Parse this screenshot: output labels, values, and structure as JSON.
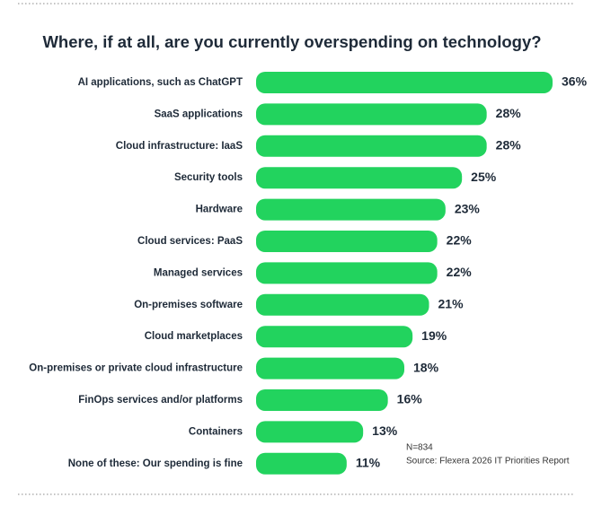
{
  "chart_data": {
    "type": "bar",
    "orientation": "horizontal",
    "title": "Where, if at all, are you currently overspending on technology?",
    "categories": [
      "AI applications, such as ChatGPT",
      "SaaS applications",
      "Cloud infrastructure: IaaS",
      "Security tools",
      "Hardware",
      "Cloud services: PaaS",
      "Managed services",
      "On-premises software",
      "Cloud marketplaces",
      "On-premises or private cloud infrastructure",
      "FinOps services and/or platforms",
      "Containers",
      "None of these: Our spending is fine"
    ],
    "values": [
      36,
      28,
      28,
      25,
      23,
      22,
      22,
      21,
      19,
      18,
      16,
      13,
      11
    ],
    "value_labels": [
      "36%",
      "28%",
      "28%",
      "25%",
      "23%",
      "22%",
      "22%",
      "21%",
      "19%",
      "18%",
      "16%",
      "13%",
      "11%"
    ],
    "color": "#22d35e",
    "xlim": [
      0,
      36
    ],
    "annotations": [
      "N=834",
      "Source: Flexera 2026 IT Priorities Report"
    ]
  }
}
